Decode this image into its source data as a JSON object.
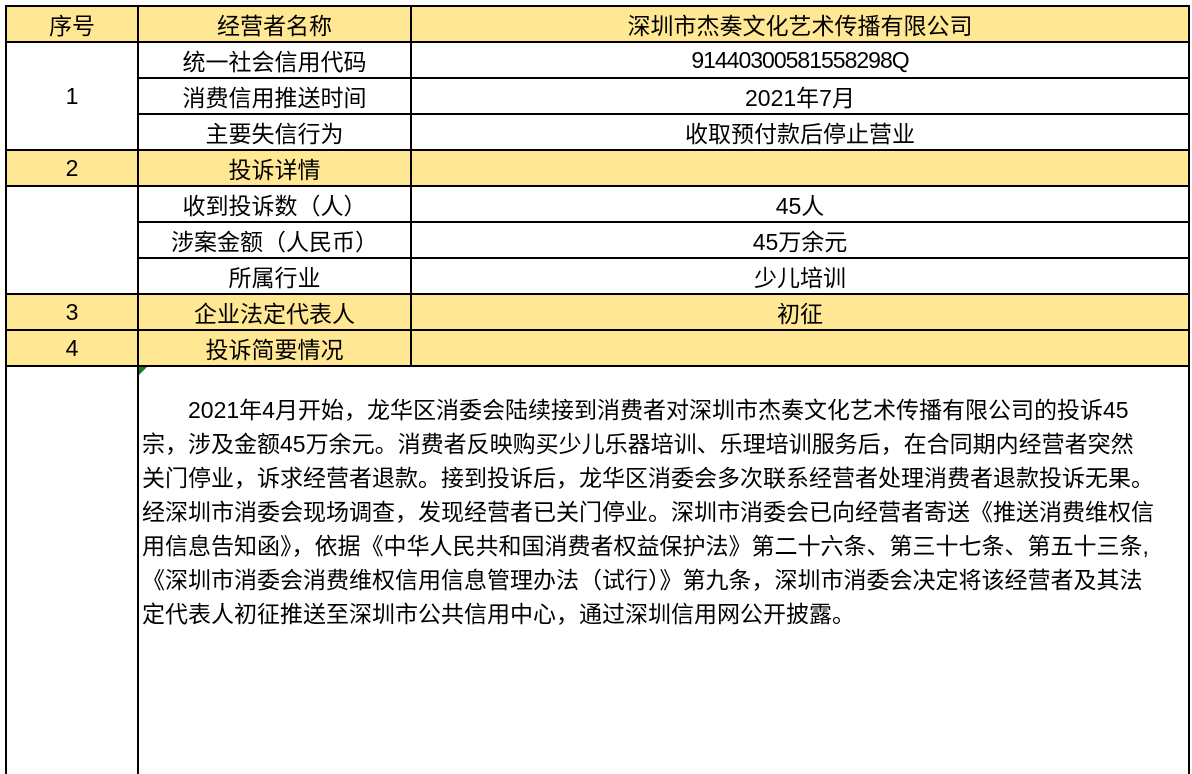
{
  "colors": {
    "highlight_bg": "#FFE794",
    "gold_text": "#BF9000",
    "accent_text": "#B94A16",
    "border": "#000000",
    "marker_green": "#1E7B1E"
  },
  "header": {
    "seq_label": "序号",
    "name_label": "经营者名称",
    "company": "深圳市杰奏文化艺术传播有限公司"
  },
  "section1": {
    "index": "1",
    "rows": [
      {
        "label": "统一社会信用代码",
        "value": "91440300581558298Q"
      },
      {
        "label": "消费信用推送时间",
        "value": "2021年7月"
      },
      {
        "label": "主要失信行为",
        "value": "收取预付款后停止营业"
      }
    ]
  },
  "section2": {
    "index": "2",
    "title": "投诉详情",
    "rows": [
      {
        "label": "收到投诉数（人）",
        "value": "45人"
      },
      {
        "label": "涉案金额（人民币）",
        "value": "45万余元"
      },
      {
        "label": "所属行业",
        "value": "少儿培训"
      }
    ]
  },
  "section3": {
    "index": "3",
    "label": "企业法定代表人",
    "value": "初征"
  },
  "section4": {
    "index": "4",
    "label": "投诉简要情况",
    "summary": "2021年4月开始，龙华区消委会陆续接到消费者对深圳市杰奏文化艺术传播有限公司的投诉45宗，涉及金额45万余元。消费者反映购买少儿乐器培训、乐理培训服务后，在合同期内经营者突然关门停业，诉求经营者退款。接到投诉后，龙华区消委会多次联系经营者处理消费者退款投诉无果。经深圳市消委会现场调查，发现经营者已关门停业。深圳市消委会已向经营者寄送《推送消费维权信用信息告知函》，依据《中华人民共和国消费者权益保护法》第二十六条、第三十七条、第五十三条,《深圳市消委会消费维权信用信息管理办法（试行）》第九条，深圳市消委会决定将该经营者及其法定代表人初征推送至深圳市公共信用中心，通过深圳信用网公开披露。"
  }
}
